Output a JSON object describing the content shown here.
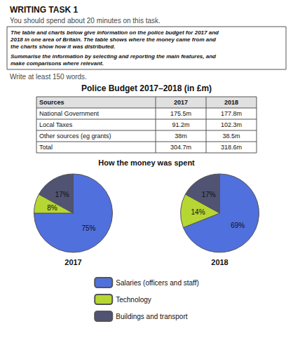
{
  "chart_data": [
    {
      "type": "table",
      "title": "Police Budget 2017–2018 (in £m)",
      "annotations": [
        "WRITING TASK 1",
        "You should spend about 20 minutes on this task.",
        "The table and charts below give information on the police budget for 2017 and",
        "2018 in one area of Britain. The table shows where the money came from and",
        "the charts show how it was distributed.",
        "Summarise the information by selecting and reporting the main features, and",
        "make comparisons where relevant.",
        "Write at least 150 words."
      ],
      "x_label": "Sources",
      "categories": [
        "National Government",
        "Local Taxes",
        "Other sources (eg grants)",
        "Total"
      ],
      "series": [
        {
          "name": "2017",
          "values": [
            175.5,
            91.2,
            38,
            304.7
          ],
          "value_labels": [
            "175.5m",
            "91.2m",
            "38m",
            "304.7m"
          ]
        },
        {
          "name": "2018",
          "values": [
            177.8,
            102.3,
            38.5,
            318.6
          ],
          "value_labels": [
            "177.8m",
            "102.3m",
            "38.5m",
            "318.6m"
          ]
        }
      ]
    },
    {
      "type": "pie",
      "title": "2017",
      "annotations": [
        "How the money was spent"
      ],
      "categories": [
        "Salaries (officers and staff)",
        "Technology",
        "Buildings and transport"
      ],
      "values": [
        75,
        8,
        17
      ],
      "value_labels": [
        "75%",
        "8%",
        "17%"
      ],
      "data_labels": true,
      "legend": "bottom"
    },
    {
      "type": "pie",
      "title": "2018",
      "categories": [
        "Salaries (officers and staff)",
        "Technology",
        "Buildings and transport"
      ],
      "values": [
        69,
        14,
        17
      ],
      "value_labels": [
        "69%",
        "14%",
        "17%"
      ],
      "data_labels": true,
      "legend": "bottom"
    }
  ]
}
